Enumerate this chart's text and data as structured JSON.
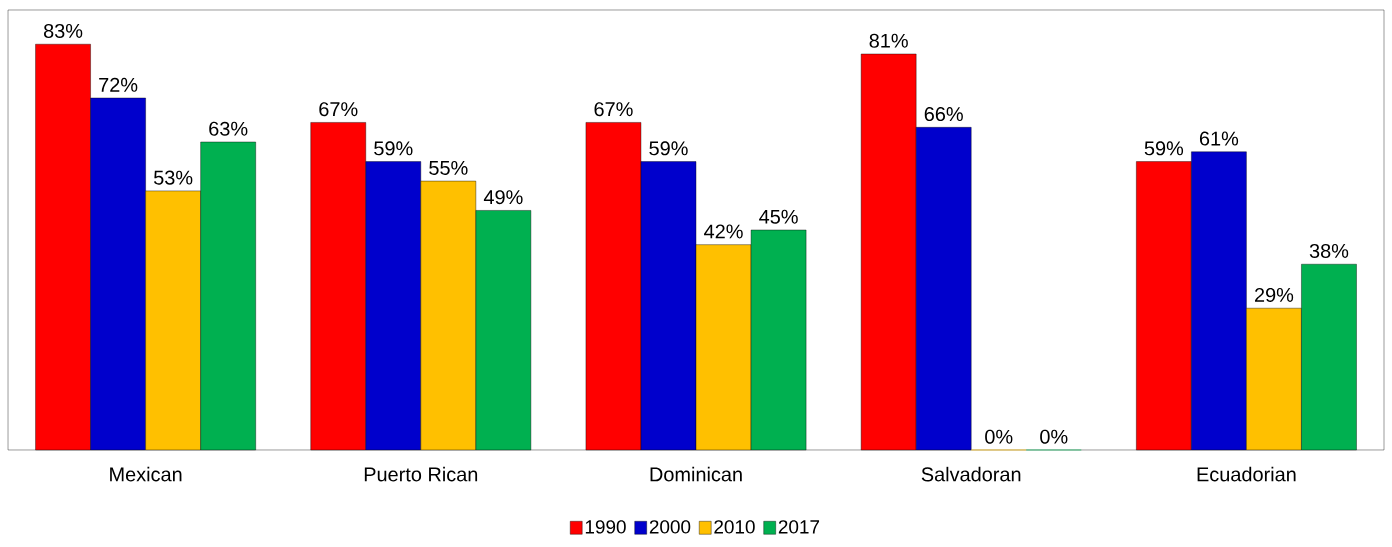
{
  "chart_data": {
    "type": "bar",
    "categories": [
      "Mexican",
      "Puerto Rican",
      "Dominican",
      "Salvadoran",
      "Ecuadorian"
    ],
    "series": [
      {
        "name": "1990",
        "color": "#ff0000",
        "values": [
          83,
          67,
          67,
          81,
          59
        ],
        "value_labels": [
          "83%",
          "67%",
          "67%",
          "81%",
          "59%"
        ]
      },
      {
        "name": "2000",
        "color": "#0000cc",
        "values": [
          72,
          59,
          59,
          66,
          61
        ],
        "value_labels": [
          "72%",
          "59%",
          "59%",
          "66%",
          "61%"
        ]
      },
      {
        "name": "2010",
        "color": "#ffc000",
        "values": [
          53,
          55,
          42,
          0,
          29
        ],
        "value_labels": [
          "53%",
          "55%",
          "42%",
          "0%",
          "29%"
        ]
      },
      {
        "name": "2017",
        "color": "#00b050",
        "values": [
          63,
          49,
          45,
          0,
          38
        ],
        "value_labels": [
          "63%",
          "49%",
          "45%",
          "0%",
          "38%"
        ]
      }
    ],
    "ylim": [
      0,
      90
    ],
    "tick_labels": "x",
    "legend": "bottom",
    "grid": false
  }
}
